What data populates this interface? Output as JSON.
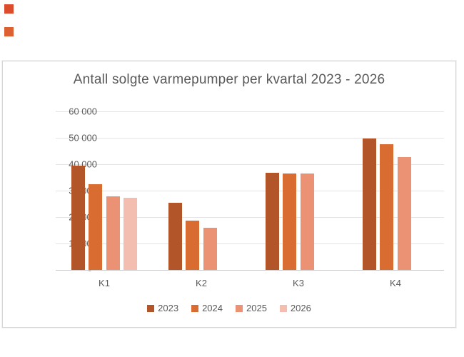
{
  "page": {
    "background": "#ffffff"
  },
  "decorations": {
    "squares": [
      {
        "name": "orange-square-top",
        "color": "#db4b2c"
      },
      {
        "name": "orange-square-bottom",
        "color": "#dd6033"
      }
    ]
  },
  "chart": {
    "title": "Antall solgte varmepumper per kvartal 2023 - 2026",
    "text_color": "#595959",
    "border_color": "#d6d6d6",
    "gridline_color": "#e4e4e4",
    "axis_line_color": "#c9c9c9",
    "background": "#ffffff"
  },
  "chart_data": {
    "type": "bar",
    "title": "Antall solgte varmepumper per kvartal 2023 - 2026",
    "categories": [
      "K1",
      "K2",
      "K3",
      "K4"
    ],
    "series": [
      {
        "name": "2023",
        "color": "#b25528",
        "values": [
          39500,
          25500,
          36800,
          49700
        ]
      },
      {
        "name": "2024",
        "color": "#d96c31",
        "values": [
          32400,
          18700,
          36400,
          47500
        ]
      },
      {
        "name": "2025",
        "color": "#ec9274",
        "values": [
          27800,
          16000,
          36400,
          42700
        ]
      },
      {
        "name": "2026",
        "color": "#f3beb0",
        "values": [
          27200,
          null,
          null,
          null
        ]
      }
    ],
    "xlabel": "",
    "ylabel": "",
    "ylim": [
      0,
      60000
    ],
    "ytick_step": 10000,
    "yticks": [
      {
        "value": 60000,
        "label": "60 000"
      },
      {
        "value": 50000,
        "label": "50 000"
      },
      {
        "value": 40000,
        "label": "40 000"
      },
      {
        "value": 30000,
        "label": "30 000"
      },
      {
        "value": 20000,
        "label": "20 000"
      },
      {
        "value": 10000,
        "label": "10 000"
      },
      {
        "value": 0,
        "label": "-"
      }
    ],
    "grid": true,
    "legend_position": "bottom"
  }
}
